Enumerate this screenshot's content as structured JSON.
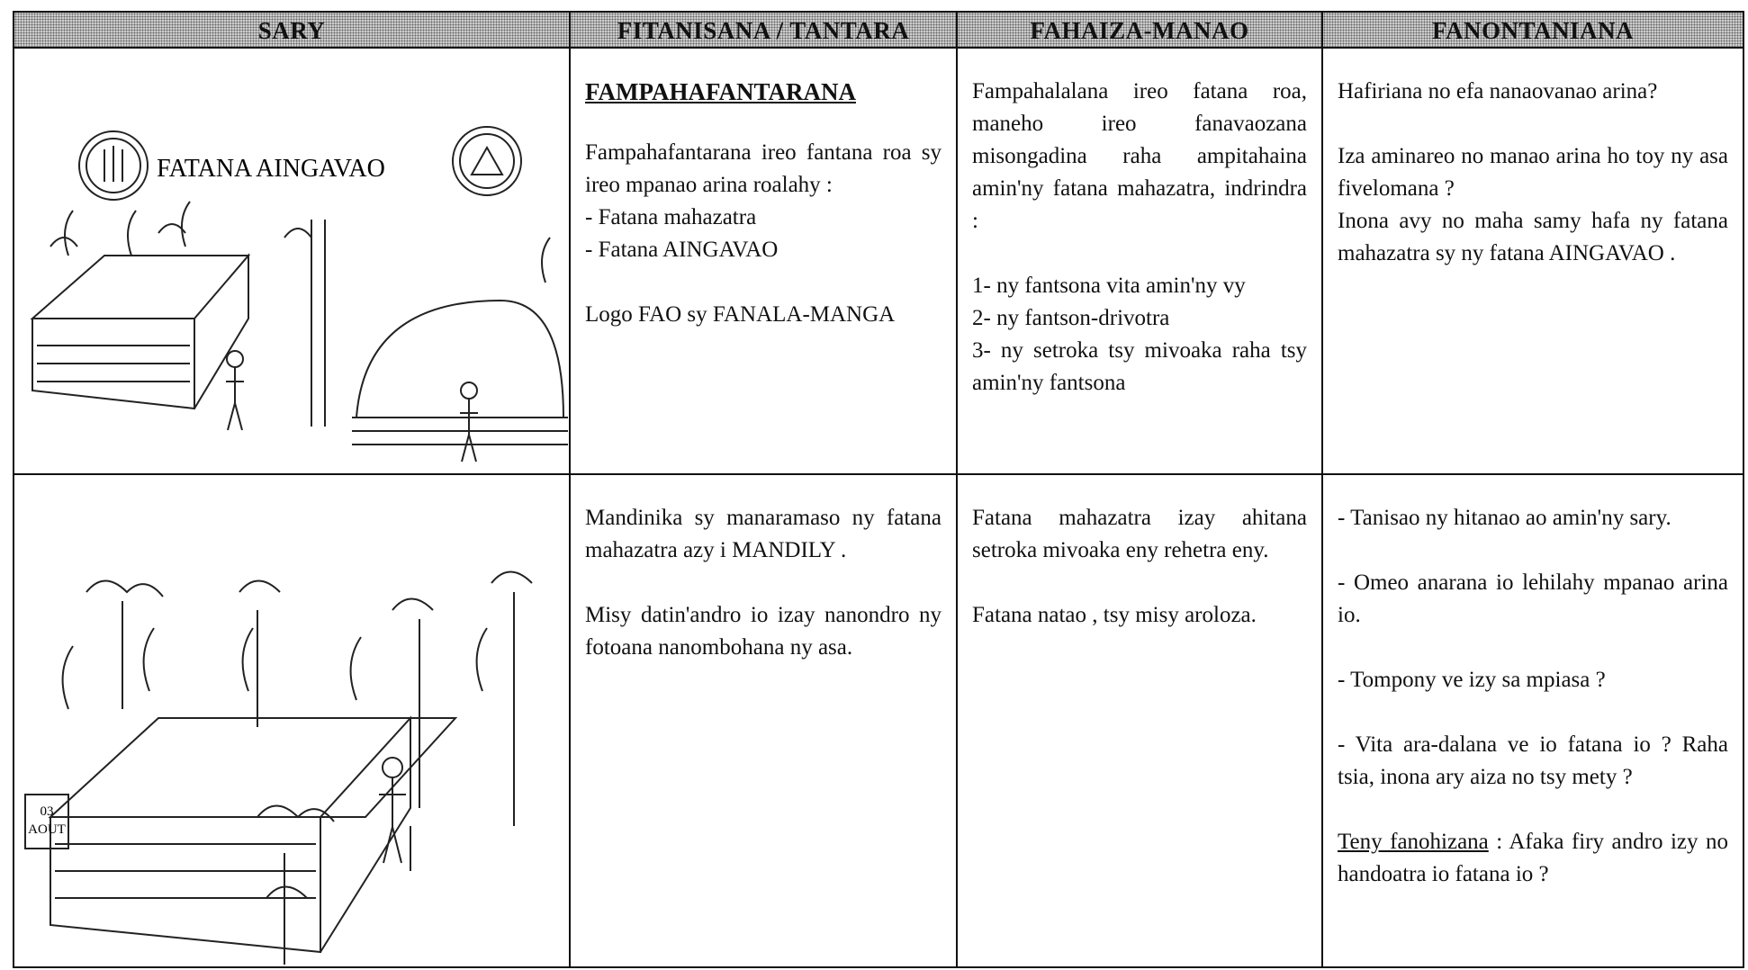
{
  "table": {
    "headers": [
      "SARY",
      "FITANISANA / TANTARA",
      "FAHAIZA-MANAO",
      "FANONTANIANA"
    ],
    "rows": [
      {
        "image_label": "FATANA AINGAVAO",
        "story": {
          "heading": "FAMPAHAFANTARANA",
          "blocks": [
            [
              "Fampahafantarana ireo fantana roa sy ireo mpanao arina roalahy :",
              "- Fatana mahazatra",
              "- Fatana AINGAVAO"
            ],
            [
              "Logo FAO sy FANALA-MANGA"
            ]
          ]
        },
        "skills": [
          [
            "Fampahalalana ireo fatana roa, maneho ireo fanavaozana misongadina raha ampitahaina amin'ny fatana mahazatra, indrindra :"
          ],
          [
            "1- ny fantsona vita amin'ny vy",
            "2- ny fantson-drivotra",
            "3- ny setroka tsy mivoaka raha tsy amin'ny fantsona"
          ]
        ],
        "questions": [
          [
            "Hafiriana no efa nanaovanao arina?"
          ],
          [
            "Iza aminareo no manao arina ho toy ny asa fivelomana ?",
            "Inona avy no maha samy hafa ny fatana mahazatra sy ny fatana AINGAVAO ."
          ]
        ]
      },
      {
        "image_label": [
          "03",
          "AOUT"
        ],
        "story": {
          "blocks": [
            [
              "Mandinika sy manaramaso ny fatana mahazatra azy i MANDILY ."
            ],
            [
              "Misy datin'andro io izay nanondro ny fotoana nanombohana ny asa."
            ]
          ]
        },
        "skills": [
          [
            "Fatana mahazatra izay ahitana setroka mivoaka eny rehetra eny."
          ],
          [
            "Fatana natao , tsy misy aroloza."
          ]
        ],
        "questions": [
          [
            "- Tanisao ny hitanao ao amin'ny sary."
          ],
          [
            "- Omeo anarana io lehilahy mpanao arina io."
          ],
          [
            "- Tompony ve izy sa mpiasa ?"
          ],
          [
            "- Vita ara-dalana ve io fatana io ? Raha tsia, inona ary aiza no tsy mety ?"
          ]
        ],
        "closing": {
          "term": "Teny fanohizana",
          "text": ": Afaka firy andro izy no handoatra io fatana io ?"
        }
      }
    ]
  }
}
